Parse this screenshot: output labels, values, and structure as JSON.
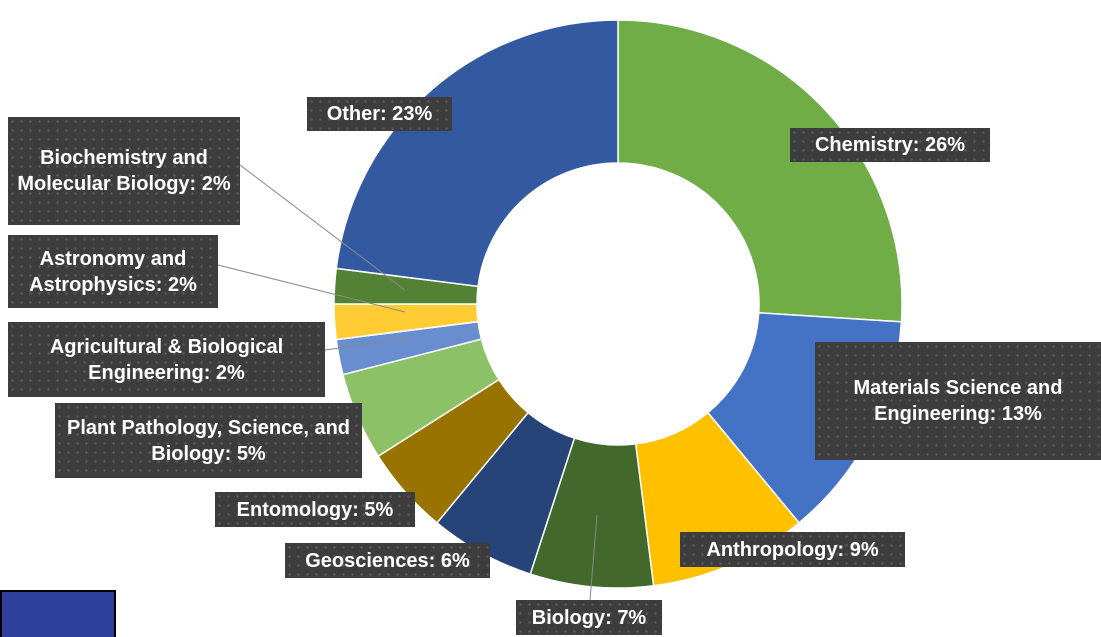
{
  "chart_data": {
    "type": "donut",
    "value_labels": [
      "Chemistry: 26%",
      "Materials Science and Engineering: 13%",
      "Anthropology: 9%",
      "Biology: 7%",
      "Geosciences: 6%",
      "Entomology: 5%",
      "Plant Pathology, Science, and Biology: 5%",
      "Agricultural & Biological Engineering: 2%",
      "Astronomy and Astrophysics: 2%",
      "Biochemistry and Molecular Biology: 2%",
      "Other: 23%"
    ],
    "values": [
      26,
      13,
      9,
      7,
      6,
      5,
      5,
      2,
      2,
      2,
      23
    ],
    "colors": [
      "#70ad47",
      "#4472c4",
      "#ffc000",
      "#43682b",
      "#264478",
      "#997300",
      "#8cc168",
      "#698ed0",
      "#ffcd33",
      "#548235",
      "#335aa1"
    ]
  }
}
